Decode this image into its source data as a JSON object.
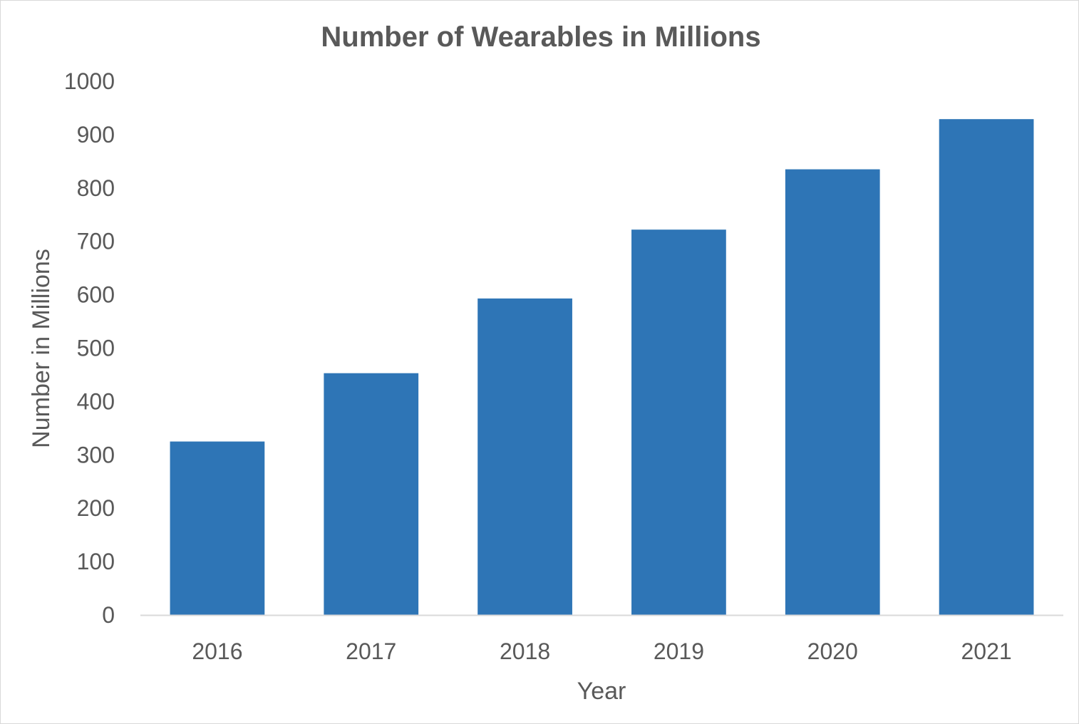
{
  "chart_data": {
    "type": "bar",
    "title": "Number of Wearables in Millions",
    "xlabel": "Year",
    "ylabel": "Number in Millions",
    "categories": [
      "2016",
      "2017",
      "2018",
      "2019",
      "2020",
      "2021"
    ],
    "values": [
      325,
      453,
      593,
      722,
      835,
      929
    ],
    "ylim": [
      0,
      1000
    ],
    "yticks": [
      "0",
      "100",
      "200",
      "300",
      "400",
      "500",
      "600",
      "700",
      "800",
      "900",
      "1000"
    ],
    "grid": false,
    "legend": "none",
    "bar_color": "#2E75B6",
    "axis_color": "#d9d9d9",
    "text_color": "#595959"
  }
}
